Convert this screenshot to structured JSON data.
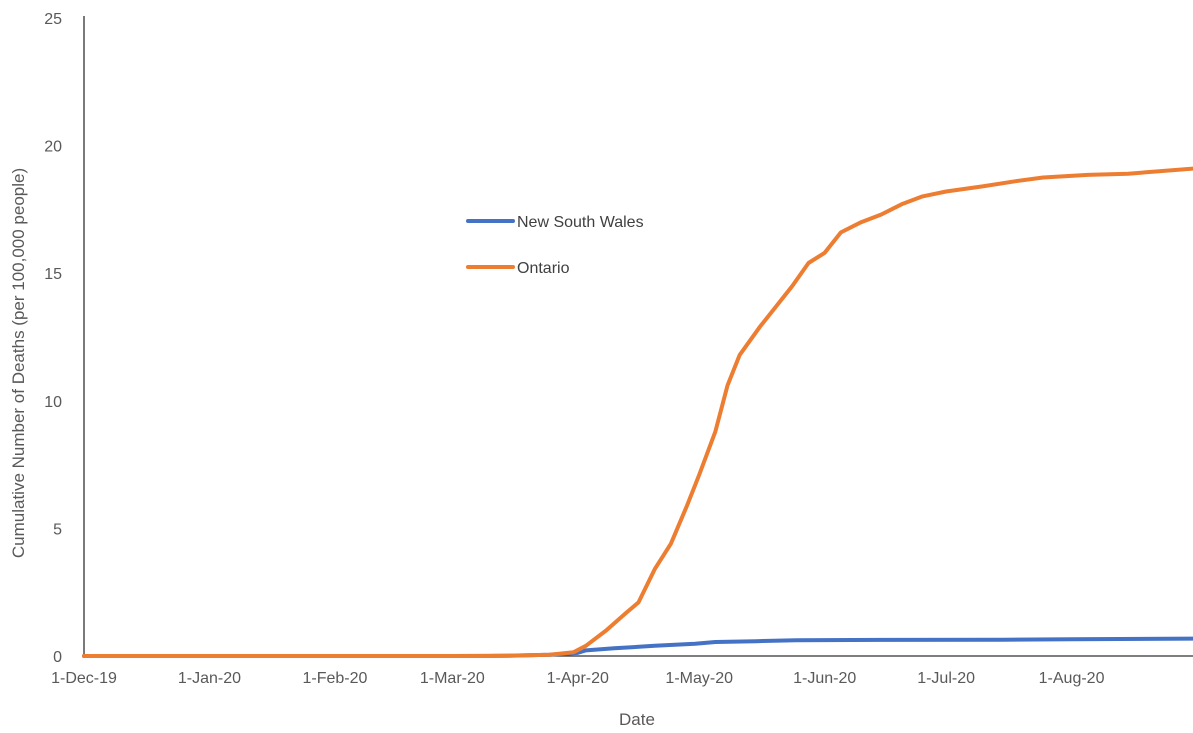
{
  "chart_data": {
    "type": "line",
    "title": "",
    "xlabel": "Date",
    "ylabel": "Cumulative Number of Deaths (per 100,000 people)",
    "x_ticks": [
      "1-Dec-19",
      "1-Jan-20",
      "1-Feb-20",
      "1-Mar-20",
      "1-Apr-20",
      "1-May-20",
      "1-Jun-20",
      "1-Jul-20",
      "1-Aug-20"
    ],
    "y_ticks": [
      "0",
      "5",
      "10",
      "15",
      "20",
      "25"
    ],
    "xlim": [
      "2019-12-01",
      "2020-08-31"
    ],
    "ylim": [
      0,
      25
    ],
    "grid": false,
    "legend_position": "center",
    "series": [
      {
        "name": "New South Wales",
        "color": "#4472C4",
        "points": [
          [
            "2019-12-01",
            0
          ],
          [
            "2020-03-01",
            0
          ],
          [
            "2020-03-15",
            0.01
          ],
          [
            "2020-03-25",
            0.05
          ],
          [
            "2020-04-01",
            0.12
          ],
          [
            "2020-04-03",
            0.22
          ],
          [
            "2020-04-10",
            0.3
          ],
          [
            "2020-04-20",
            0.4
          ],
          [
            "2020-04-30",
            0.48
          ],
          [
            "2020-05-05",
            0.55
          ],
          [
            "2020-05-15",
            0.58
          ],
          [
            "2020-05-25",
            0.62
          ],
          [
            "2020-06-15",
            0.63
          ],
          [
            "2020-07-15",
            0.64
          ],
          [
            "2020-08-01",
            0.66
          ],
          [
            "2020-08-31",
            0.68
          ]
        ]
      },
      {
        "name": "Ontario",
        "color": "#ED7D31",
        "points": [
          [
            "2019-12-01",
            0
          ],
          [
            "2020-03-10",
            0
          ],
          [
            "2020-03-25",
            0.05
          ],
          [
            "2020-03-31",
            0.15
          ],
          [
            "2020-04-03",
            0.4
          ],
          [
            "2020-04-08",
            1.0
          ],
          [
            "2020-04-13",
            1.7
          ],
          [
            "2020-04-16",
            2.1
          ],
          [
            "2020-04-20",
            3.4
          ],
          [
            "2020-04-24",
            4.4
          ],
          [
            "2020-04-28",
            5.9
          ],
          [
            "2020-05-01",
            7.1
          ],
          [
            "2020-05-05",
            8.8
          ],
          [
            "2020-05-08",
            10.6
          ],
          [
            "2020-05-11",
            11.8
          ],
          [
            "2020-05-16",
            12.9
          ],
          [
            "2020-05-21",
            13.9
          ],
          [
            "2020-05-24",
            14.5
          ],
          [
            "2020-05-28",
            15.4
          ],
          [
            "2020-06-01",
            15.8
          ],
          [
            "2020-06-05",
            16.6
          ],
          [
            "2020-06-10",
            17.0
          ],
          [
            "2020-06-15",
            17.3
          ],
          [
            "2020-06-20",
            17.7
          ],
          [
            "2020-06-25",
            18.0
          ],
          [
            "2020-07-01",
            18.2
          ],
          [
            "2020-07-10",
            18.4
          ],
          [
            "2020-07-18",
            18.6
          ],
          [
            "2020-07-25",
            18.75
          ],
          [
            "2020-08-05",
            18.85
          ],
          [
            "2020-08-15",
            18.9
          ],
          [
            "2020-08-31",
            19.1
          ]
        ]
      }
    ]
  }
}
